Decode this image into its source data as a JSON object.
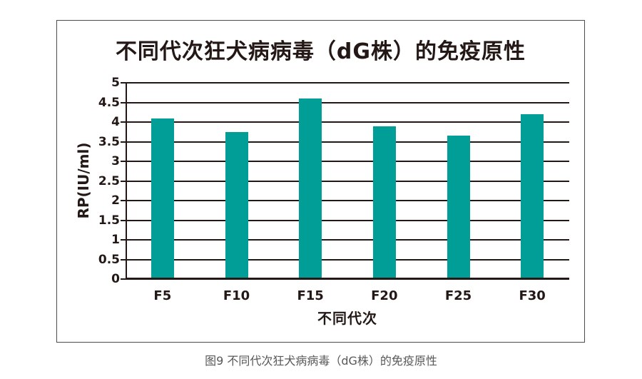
{
  "figure": {
    "caption": "图9 不同代次狂犬病病毒（dG株）的免疫原性",
    "caption_color": "#595757",
    "frame_border_color": "#4c4c4e",
    "background": "#ffffff"
  },
  "chart_data": {
    "type": "bar",
    "title": "不同代次狂犬病病毒（dG株）的免疫原性",
    "categories": [
      "F5",
      "F10",
      "F15",
      "F20",
      "F25",
      "F30"
    ],
    "values": [
      4.1,
      3.75,
      4.6,
      3.9,
      3.65,
      4.2
    ],
    "xlabel": "不同代次",
    "ylabel": "RP(IU/ml)",
    "ylim": [
      0,
      5
    ],
    "ytick_step": 0.5,
    "yticks": [
      0,
      0.5,
      1,
      1.5,
      2,
      2.5,
      3,
      3.5,
      4,
      4.5,
      5
    ],
    "grid": true,
    "legend": false,
    "bar_color": "#009E96",
    "grid_color": "#231815",
    "axis_color": "#231815",
    "text_color": "#231815"
  }
}
